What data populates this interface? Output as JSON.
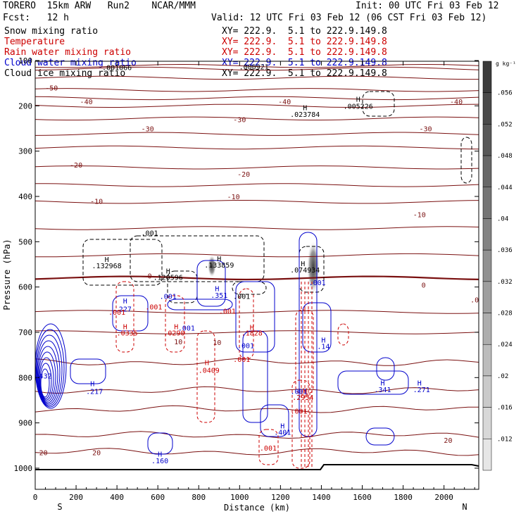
{
  "header": {
    "model_line": "TORERO  15km ARW   Run2    NCAR/MMM",
    "init": "Init: 00 UTC Fri 03 Feb 12",
    "fcst": "Fcst:   12 h",
    "valid": "Valid: 12 UTC Fri 03 Feb 12 (06 CST Fri 03 Feb 12)",
    "fields": [
      {
        "name": "Snow mixing ratio",
        "xy": "XY= 222.9.  5.1 to 222.9.149.8",
        "color": "#000000"
      },
      {
        "name": "Temperature",
        "xy": "XY= 222.9.  5.1 to 222.9.149.8",
        "color": "#cc0000"
      },
      {
        "name": "Rain water mixing ratio",
        "xy": "XY= 222.9.  5.1 to 222.9.149.8",
        "color": "#cc0000"
      },
      {
        "name": "Cloud water mixing ratio",
        "xy": "XY= 222.9.  5.1 to 222.9.149.8",
        "color": "#0000cc"
      },
      {
        "name": "Cloud ice mixing ratio",
        "xy": "XY= 222.9.  5.1 to 222.9.149.8",
        "color": "#000000"
      }
    ]
  },
  "colorbar": {
    "unit": "g kg⁻¹",
    "ticks": [
      ".056",
      ".052",
      ".048",
      ".044",
      ".04",
      ".036",
      ".032",
      ".028",
      ".024",
      ".02",
      ".016",
      ".012"
    ]
  },
  "chart_data": {
    "type": "contour",
    "xlabel": "Distance (km)",
    "ylabel": "Pressure (hPa)",
    "x_ticks": [
      0,
      200,
      400,
      600,
      800,
      1000,
      1200,
      1400,
      1600,
      1800,
      2000
    ],
    "y_ticks": [
      100,
      200,
      300,
      400,
      500,
      600,
      700,
      800,
      900,
      1000
    ],
    "x_end_labels": {
      "left": "S",
      "right": "N"
    },
    "temperature_labels": [
      {
        "x": 80,
        "p": 160,
        "text": "-50"
      },
      {
        "x": 250,
        "p": 190,
        "text": "-40"
      },
      {
        "x": 1220,
        "p": 190,
        "text": "-40"
      },
      {
        "x": 2060,
        "p": 190,
        "text": "-40"
      },
      {
        "x": 550,
        "p": 250,
        "text": "-30"
      },
      {
        "x": 1000,
        "p": 230,
        "text": "-30"
      },
      {
        "x": 1910,
        "p": 250,
        "text": "-30"
      },
      {
        "x": 200,
        "p": 330,
        "text": "-20"
      },
      {
        "x": 1020,
        "p": 350,
        "text": "-20"
      },
      {
        "x": 300,
        "p": 410,
        "text": "-10"
      },
      {
        "x": 970,
        "p": 400,
        "text": "-10"
      },
      {
        "x": 1880,
        "p": 440,
        "text": "-10"
      },
      {
        "x": 560,
        "p": 575,
        "text": "0"
      },
      {
        "x": 1900,
        "p": 595,
        "text": "0"
      },
      {
        "x": 2150,
        "p": 628,
        "text": ".0"
      },
      {
        "x": 700,
        "p": 720,
        "text": "10"
      },
      {
        "x": 890,
        "p": 722,
        "text": "10"
      },
      {
        "x": 2020,
        "p": 938,
        "text": "20"
      },
      {
        "x": 300,
        "p": 965,
        "text": "20"
      },
      {
        "x": 40,
        "p": 965,
        "text": "20"
      }
    ],
    "maxima": [
      {
        "x": 350,
        "p": 552,
        "text": ".132968",
        "color": "#000000"
      },
      {
        "x": 650,
        "p": 578,
        "text": ".120596",
        "color": "#000000"
      },
      {
        "x": 900,
        "p": 551,
        "text": ".133859",
        "color": "#000000"
      },
      {
        "x": 1320,
        "p": 562,
        "text": ".074934",
        "color": "#000000"
      },
      {
        "x": 1320,
        "p": 218,
        "text": ".023784",
        "color": "#000000"
      },
      {
        "x": 1580,
        "p": 200,
        "text": ".005226",
        "color": "#000000"
      },
      {
        "x": 1070,
        "p": 113,
        "text": ".000921",
        "color": "#000000"
      },
      {
        "x": 400,
        "p": 115,
        "text": ".001066",
        "color": "#000000"
      },
      {
        "x": 430,
        "p": 648,
        "text": ".227",
        "color": "#0000cc"
      },
      {
        "x": 900,
        "p": 618,
        "text": ".351",
        "color": "#0000cc"
      },
      {
        "x": 290,
        "p": 830,
        "text": ".217",
        "color": "#0000cc"
      },
      {
        "x": 1700,
        "p": 826,
        "text": ".341",
        "color": "#0000cc"
      },
      {
        "x": 1890,
        "p": 826,
        "text": ".271",
        "color": "#0000cc"
      },
      {
        "x": 1210,
        "p": 920,
        "text": ".401",
        "color": "#0000cc"
      },
      {
        "x": 610,
        "p": 983,
        "text": ".160",
        "color": "#0000cc"
      },
      {
        "x": 40,
        "p": 796,
        "text": ".432",
        "color": "#0000cc"
      },
      {
        "x": 1410,
        "p": 730,
        "text": ".14",
        "color": "#0000cc"
      },
      {
        "x": 450,
        "p": 701,
        "text": ".0335",
        "color": "#cc0000"
      },
      {
        "x": 680,
        "p": 701,
        "text": ".0290",
        "color": "#cc0000"
      },
      {
        "x": 850,
        "p": 783,
        "text": ".0409",
        "color": "#cc0000"
      },
      {
        "x": 1060,
        "p": 701,
        "text": ".1828",
        "color": "#cc0000"
      },
      {
        "x": 1310,
        "p": 843,
        "text": ".2954",
        "color": "#cc0000"
      }
    ],
    "contour_labels": [
      {
        "x": 560,
        "p": 480,
        "text": ".001",
        "color": "#000000"
      },
      {
        "x": 650,
        "p": 620,
        "text": ".001",
        "color": "#0000cc"
      },
      {
        "x": 1010,
        "p": 620,
        "text": ".001",
        "color": "#000000"
      },
      {
        "x": 1380,
        "p": 590,
        "text": ".001",
        "color": "#0000cc"
      },
      {
        "x": 400,
        "p": 655,
        "text": ".001",
        "color": "#cc0000"
      },
      {
        "x": 580,
        "p": 643,
        "text": ".001",
        "color": "#cc0000"
      },
      {
        "x": 940,
        "p": 653,
        "text": ".001",
        "color": "#cc0000"
      },
      {
        "x": 740,
        "p": 690,
        "text": ".001",
        "color": "#0000cc"
      },
      {
        "x": 1030,
        "p": 729,
        "text": ".001",
        "color": "#0000cc"
      },
      {
        "x": 1010,
        "p": 759,
        "text": ".001",
        "color": "#cc0000"
      },
      {
        "x": 1290,
        "p": 830,
        "text": ".001",
        "color": "#0000cc"
      },
      {
        "x": 1290,
        "p": 873,
        "text": ".001",
        "color": "#cc0000"
      },
      {
        "x": 1140,
        "p": 955,
        "text": ".001",
        "color": "#cc0000"
      }
    ],
    "h_markers": [
      {
        "x": 350,
        "p": 538,
        "color": "#000000"
      },
      {
        "x": 650,
        "p": 564,
        "color": "#000000"
      },
      {
        "x": 900,
        "p": 537,
        "color": "#000000"
      },
      {
        "x": 1310,
        "p": 548,
        "color": "#000000"
      },
      {
        "x": 1320,
        "p": 203,
        "color": "#000000"
      },
      {
        "x": 1580,
        "p": 185,
        "color": "#000000"
      },
      {
        "x": 440,
        "p": 630,
        "color": "#0000cc"
      },
      {
        "x": 890,
        "p": 603,
        "color": "#0000cc"
      },
      {
        "x": 280,
        "p": 813,
        "color": "#0000cc"
      },
      {
        "x": 1700,
        "p": 811,
        "color": "#0000cc"
      },
      {
        "x": 1880,
        "p": 811,
        "color": "#0000cc"
      },
      {
        "x": 1210,
        "p": 906,
        "color": "#0000cc"
      },
      {
        "x": 610,
        "p": 968,
        "color": "#0000cc"
      },
      {
        "x": 1410,
        "p": 716,
        "color": "#0000cc"
      },
      {
        "x": 440,
        "p": 687,
        "color": "#cc0000"
      },
      {
        "x": 690,
        "p": 687,
        "color": "#cc0000"
      },
      {
        "x": 840,
        "p": 766,
        "color": "#cc0000"
      },
      {
        "x": 1060,
        "p": 688,
        "color": "#cc0000"
      },
      {
        "x": 1320,
        "p": 828,
        "color": "#cc0000"
      }
    ]
  }
}
